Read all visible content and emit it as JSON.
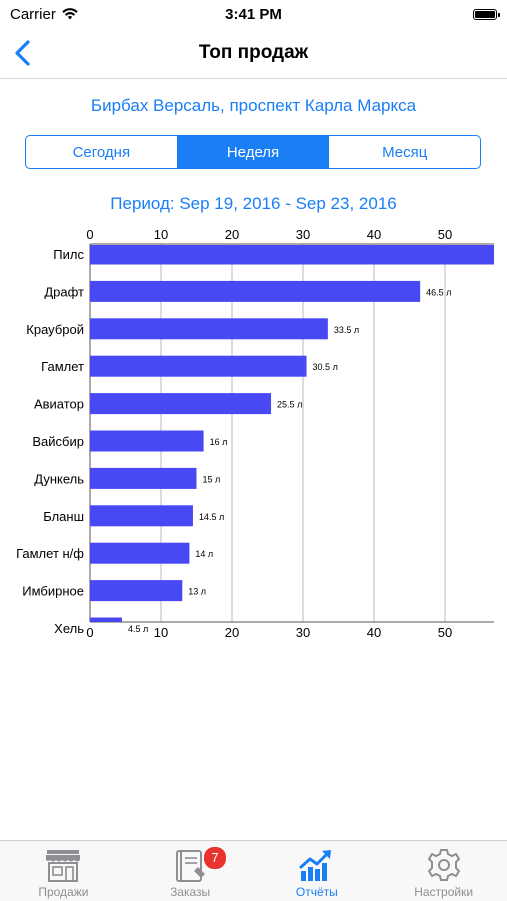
{
  "status_bar": {
    "carrier": "Carrier",
    "time": "3:41 PM"
  },
  "nav": {
    "title": "Топ продаж"
  },
  "subtitle": "Бирбах Версаль, проспект Карла Маркса",
  "segments": [
    {
      "label": "Сегодня",
      "active": false
    },
    {
      "label": "Неделя",
      "active": true
    },
    {
      "label": "Месяц",
      "active": false
    }
  ],
  "period": "Период: Sep 19, 2016 - Sep 23, 2016",
  "chart_data": {
    "type": "bar",
    "orientation": "horizontal",
    "categories": [
      "Пилс",
      "Драфт",
      "Крауброй",
      "Гамлет",
      "Авиатор",
      "Вайсбир",
      "Дункель",
      "Бланш",
      "Гамлет н/ф",
      "Имбирное",
      "Хель"
    ],
    "values": [
      57,
      46.5,
      33.5,
      30.5,
      25.5,
      16,
      15,
      14.5,
      14,
      13,
      4.5
    ],
    "data_labels": [
      "",
      "46.5 л",
      "33.5 л",
      "30.5 л",
      "25.5 л",
      "16 л",
      "15 л",
      "14.5 л",
      "14 л",
      "13 л",
      "4.5 л"
    ],
    "ticks": [
      "0",
      "10",
      "20",
      "30",
      "40",
      "50"
    ],
    "tick_values": [
      0,
      10,
      20,
      30,
      40,
      50
    ],
    "xlim": [
      0,
      57
    ],
    "grid": true,
    "bar_color": "#4848f4"
  },
  "tabs": [
    {
      "label": "Продажи",
      "icon": "store-icon",
      "active": false
    },
    {
      "label": "Заказы",
      "icon": "orders-icon",
      "active": false,
      "badge": "7"
    },
    {
      "label": "Отчёты",
      "icon": "reports-chart-icon",
      "active": true
    },
    {
      "label": "Настройки",
      "icon": "gear-icon",
      "active": false
    }
  ],
  "colors": {
    "accent": "#1a7ff5",
    "badge": "#e8332f",
    "bar": "#4848f4"
  }
}
